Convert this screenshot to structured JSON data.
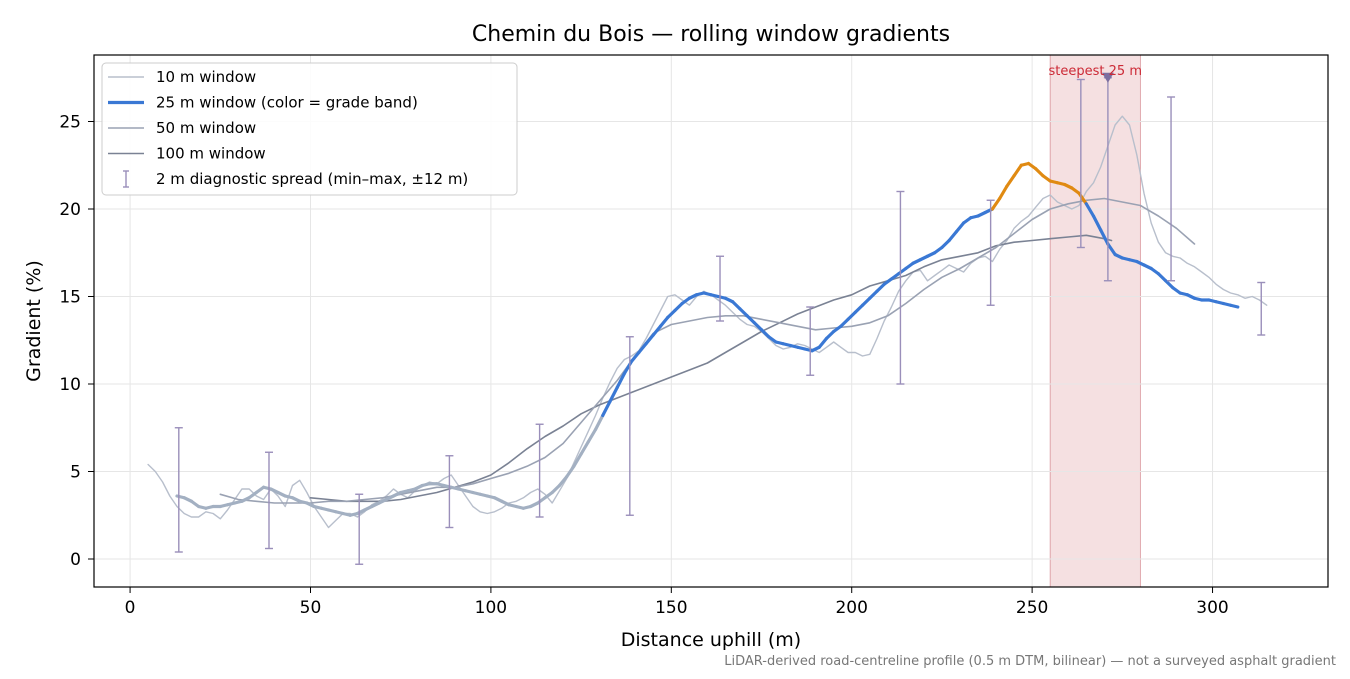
{
  "chart_data": {
    "type": "line",
    "title": "Chemin du Bois — rolling window gradients",
    "xlabel": "Distance uphill (m)",
    "ylabel": "Gradient (%)",
    "xlim": [
      -10,
      332
    ],
    "ylim": [
      -1.6,
      28.8
    ],
    "x_ticks": [
      0,
      50,
      100,
      150,
      200,
      250,
      300
    ],
    "y_ticks": [
      0,
      5,
      10,
      15,
      20,
      25
    ],
    "x_tick_labels": [
      "0",
      "50",
      "100",
      "150",
      "200",
      "250",
      "300"
    ],
    "y_tick_labels": [
      "0",
      "5",
      "10",
      "15",
      "20",
      "25"
    ],
    "grid": true,
    "legend_position": "top-left",
    "footnote": "LiDAR-derived road-centreline profile (0.5 m DTM, bilinear) — not a surveyed asphalt gradient",
    "steepest_annotation": {
      "label": "steepest 25 m",
      "x_start": 255,
      "x_end": 280,
      "marker_x": 271,
      "marker_y": 27.5
    },
    "colors": {
      "w10": "#b8bfcc",
      "w25_low": "#a3b0c2",
      "w25_mid": "#3a78d4",
      "w25_high": "#e08a12",
      "w50": "#9aa2b3",
      "w100": "#7a8294",
      "spread": "#9a8fba",
      "highlight": "#e8b4b8",
      "annotation": "#cc2a36"
    },
    "legend": [
      {
        "key": "w10",
        "label": "10 m window"
      },
      {
        "key": "w25",
        "label": "25 m window (color = grade band)"
      },
      {
        "key": "w50",
        "label": "50 m window"
      },
      {
        "key": "w100",
        "label": "100 m window"
      },
      {
        "key": "spread",
        "label": "2 m diagnostic spread (min–max, ±12 m)"
      }
    ],
    "series": [
      {
        "name": "10 m window",
        "x": [
          5,
          7,
          9,
          11,
          13,
          15,
          17,
          19,
          21,
          23,
          25,
          27,
          29,
          31,
          33,
          35,
          37,
          39,
          41,
          43,
          45,
          47,
          49,
          51,
          53,
          55,
          57,
          59,
          61,
          63,
          65,
          67,
          69,
          71,
          73,
          75,
          77,
          79,
          81,
          83,
          85,
          87,
          89,
          91,
          93,
          95,
          97,
          99,
          101,
          103,
          105,
          107,
          109,
          111,
          113,
          115,
          117,
          119,
          121,
          123,
          125,
          127,
          129,
          131,
          133,
          135,
          137,
          139,
          141,
          143,
          145,
          147,
          149,
          151,
          153,
          155,
          157,
          159,
          161,
          163,
          165,
          167,
          169,
          171,
          173,
          175,
          177,
          179,
          181,
          183,
          185,
          187,
          189,
          191,
          193,
          195,
          197,
          199,
          201,
          203,
          205,
          207,
          209,
          211,
          213,
          215,
          217,
          219,
          221,
          223,
          225,
          227,
          229,
          231,
          233,
          235,
          237,
          239,
          241,
          243,
          245,
          247,
          249,
          251,
          253,
          255,
          257,
          259,
          261,
          263,
          265,
          267,
          269,
          271,
          273,
          275,
          277,
          279,
          281,
          283,
          285,
          287,
          289,
          291,
          293,
          295,
          297,
          299,
          301,
          303,
          305,
          307,
          309,
          311,
          313,
          315
        ],
        "y": [
          5.4,
          5.0,
          4.4,
          3.6,
          3.0,
          2.6,
          2.4,
          2.4,
          2.7,
          2.6,
          2.3,
          2.8,
          3.4,
          4.0,
          4.0,
          3.6,
          3.4,
          4.0,
          3.6,
          3.0,
          4.2,
          4.5,
          3.8,
          3.0,
          2.4,
          1.8,
          2.2,
          2.6,
          2.6,
          2.4,
          2.7,
          3.1,
          3.3,
          3.6,
          4.0,
          3.7,
          3.5,
          3.9,
          4.2,
          4.4,
          4.3,
          4.6,
          4.8,
          4.2,
          3.6,
          3.0,
          2.7,
          2.6,
          2.7,
          2.9,
          3.2,
          3.3,
          3.5,
          3.8,
          4.0,
          3.7,
          3.2,
          3.9,
          4.6,
          5.5,
          6.4,
          7.3,
          8.2,
          9.2,
          10.1,
          10.9,
          11.4,
          11.6,
          11.9,
          12.6,
          13.4,
          14.2,
          15.0,
          15.1,
          14.8,
          14.5,
          15.0,
          15.3,
          15.1,
          14.8,
          14.5,
          14.1,
          13.7,
          13.4,
          13.3,
          13.0,
          12.6,
          12.2,
          12.0,
          12.1,
          12.3,
          12.2,
          12.0,
          11.8,
          12.1,
          12.4,
          12.1,
          11.8,
          11.8,
          11.6,
          11.7,
          12.6,
          13.6,
          14.4,
          15.3,
          15.9,
          16.4,
          16.5,
          15.9,
          16.2,
          16.5,
          16.8,
          16.6,
          16.4,
          16.9,
          17.2,
          17.3,
          17.0,
          17.7,
          18.2,
          18.9,
          19.3,
          19.6,
          20.1,
          20.6,
          20.8,
          20.4,
          20.2,
          20.0,
          20.2,
          21.0,
          21.5,
          22.4,
          23.6,
          24.8,
          25.3,
          24.8,
          23.1,
          20.9,
          19.2,
          18.1,
          17.5,
          17.3,
          17.2,
          16.9,
          16.7,
          16.4,
          16.1,
          15.7,
          15.4,
          15.2,
          15.1,
          14.9,
          15.0,
          14.8,
          14.5
        ]
      },
      {
        "name": "25 m window",
        "x": [
          13,
          15,
          17,
          19,
          21,
          23,
          25,
          27,
          29,
          31,
          33,
          35,
          37,
          39,
          41,
          43,
          45,
          47,
          49,
          51,
          53,
          55,
          57,
          59,
          61,
          63,
          65,
          67,
          69,
          71,
          73,
          75,
          77,
          79,
          81,
          83,
          85,
          87,
          89,
          91,
          93,
          95,
          97,
          99,
          101,
          103,
          105,
          107,
          109,
          111,
          113,
          115,
          117,
          119,
          121,
          123,
          125,
          127,
          129,
          131,
          133,
          135,
          137,
          139,
          141,
          143,
          145,
          147,
          149,
          151,
          153,
          155,
          157,
          159,
          161,
          163,
          165,
          167,
          169,
          171,
          173,
          175,
          177,
          179,
          181,
          183,
          185,
          187,
          189,
          191,
          193,
          195,
          197,
          199,
          201,
          203,
          205,
          207,
          209,
          211,
          213,
          215,
          217,
          219,
          221,
          223,
          225,
          227,
          229,
          231,
          233,
          235,
          237,
          239,
          241,
          243,
          245,
          247,
          249,
          251,
          253,
          255,
          257,
          259,
          261,
          263,
          265,
          267,
          269,
          271,
          273,
          275,
          277,
          279,
          281,
          283,
          285,
          287,
          289,
          291,
          293,
          295,
          297,
          299,
          301,
          303,
          305,
          307
        ],
        "y": [
          3.6,
          3.5,
          3.3,
          3.0,
          2.9,
          3.0,
          3.0,
          3.1,
          3.2,
          3.3,
          3.5,
          3.8,
          4.1,
          4.0,
          3.8,
          3.6,
          3.5,
          3.3,
          3.2,
          3.0,
          2.9,
          2.8,
          2.7,
          2.6,
          2.5,
          2.6,
          2.8,
          3.0,
          3.2,
          3.4,
          3.6,
          3.8,
          3.9,
          4.0,
          4.2,
          4.3,
          4.3,
          4.2,
          4.1,
          4.0,
          3.9,
          3.8,
          3.7,
          3.6,
          3.5,
          3.3,
          3.1,
          3.0,
          2.9,
          3.0,
          3.2,
          3.5,
          3.8,
          4.2,
          4.7,
          5.3,
          6.0,
          6.7,
          7.4,
          8.2,
          9.0,
          9.8,
          10.6,
          11.3,
          11.8,
          12.3,
          12.8,
          13.3,
          13.8,
          14.2,
          14.6,
          14.9,
          15.1,
          15.2,
          15.1,
          15.0,
          14.9,
          14.7,
          14.3,
          13.9,
          13.5,
          13.1,
          12.7,
          12.4,
          12.3,
          12.2,
          12.1,
          12.0,
          11.9,
          12.1,
          12.6,
          13.0,
          13.3,
          13.7,
          14.1,
          14.5,
          14.9,
          15.3,
          15.7,
          16.0,
          16.3,
          16.6,
          16.9,
          17.1,
          17.3,
          17.5,
          17.8,
          18.2,
          18.7,
          19.2,
          19.5,
          19.6,
          19.8,
          20.0,
          20.6,
          21.3,
          21.9,
          22.5,
          22.6,
          22.3,
          21.9,
          21.6,
          21.5,
          21.4,
          21.2,
          20.9,
          20.3,
          19.6,
          18.8,
          18.0,
          17.4,
          17.2,
          17.1,
          17.0,
          16.8,
          16.6,
          16.3,
          15.9,
          15.5,
          15.2,
          15.1,
          14.9,
          14.8,
          14.8,
          14.7,
          14.6,
          14.5,
          14.4
        ],
        "grade_bands": [
          {
            "max": 8,
            "color_key": "w25_low"
          },
          {
            "max": 20,
            "color_key": "w25_mid"
          },
          {
            "max": 99,
            "color_key": "w25_high"
          }
        ]
      },
      {
        "name": "50 m window",
        "x": [
          25,
          30,
          35,
          40,
          45,
          50,
          55,
          60,
          65,
          70,
          75,
          80,
          85,
          90,
          95,
          100,
          105,
          110,
          115,
          120,
          125,
          130,
          135,
          140,
          145,
          150,
          155,
          160,
          165,
          170,
          175,
          180,
          185,
          190,
          195,
          200,
          205,
          210,
          215,
          220,
          225,
          230,
          235,
          240,
          245,
          250,
          255,
          260,
          265,
          270,
          275,
          280,
          285,
          290,
          295
        ],
        "y": [
          3.7,
          3.4,
          3.3,
          3.2,
          3.2,
          3.2,
          3.3,
          3.3,
          3.4,
          3.5,
          3.7,
          3.9,
          4.1,
          4.1,
          4.3,
          4.6,
          4.9,
          5.3,
          5.8,
          6.6,
          7.8,
          9.0,
          10.2,
          11.6,
          12.9,
          13.4,
          13.6,
          13.8,
          13.9,
          13.9,
          13.7,
          13.5,
          13.3,
          13.1,
          13.2,
          13.3,
          13.5,
          13.9,
          14.6,
          15.4,
          16.1,
          16.6,
          17.2,
          17.8,
          18.6,
          19.4,
          20.0,
          20.3,
          20.5,
          20.6,
          20.4,
          20.2,
          19.6,
          18.9,
          18.0
        ]
      },
      {
        "name": "100 m window",
        "x": [
          50,
          55,
          60,
          65,
          70,
          75,
          80,
          85,
          90,
          95,
          100,
          105,
          110,
          115,
          120,
          125,
          130,
          135,
          140,
          145,
          150,
          155,
          160,
          165,
          170,
          175,
          180,
          185,
          190,
          195,
          200,
          205,
          210,
          215,
          220,
          225,
          230,
          235,
          240,
          245,
          250,
          255,
          260,
          265,
          270,
          272
        ],
        "y": [
          3.5,
          3.4,
          3.3,
          3.3,
          3.3,
          3.4,
          3.6,
          3.8,
          4.1,
          4.4,
          4.8,
          5.5,
          6.3,
          7.0,
          7.6,
          8.3,
          8.8,
          9.2,
          9.6,
          10.0,
          10.4,
          10.8,
          11.2,
          11.8,
          12.4,
          13.0,
          13.5,
          14.0,
          14.4,
          14.8,
          15.1,
          15.6,
          15.9,
          16.2,
          16.7,
          17.1,
          17.3,
          17.5,
          17.9,
          18.1,
          18.2,
          18.3,
          18.4,
          18.5,
          18.3,
          18.2
        ]
      },
      {
        "name": "2 m diagnostic spread (min–max, ±12 m)",
        "x": [
          13.5,
          38.5,
          63.5,
          88.5,
          113.5,
          138.5,
          163.5,
          188.5,
          213.5,
          238.5,
          263.5,
          271,
          288.5,
          313.5
        ],
        "low": [
          0.4,
          0.6,
          -0.3,
          1.8,
          2.4,
          2.5,
          13.6,
          10.5,
          10.0,
          14.5,
          17.8,
          15.9,
          15.9,
          12.8
        ],
        "high": [
          7.5,
          6.1,
          3.7,
          5.9,
          7.7,
          12.7,
          17.3,
          14.4,
          21.0,
          20.5,
          27.4,
          27.5,
          26.4,
          15.8
        ]
      }
    ]
  }
}
